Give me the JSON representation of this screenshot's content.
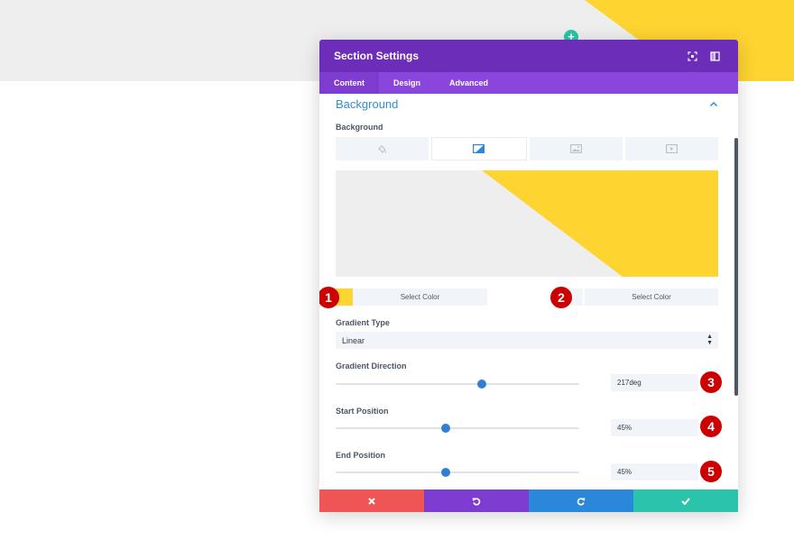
{
  "colors": {
    "canvas_gray": "#eeeeee",
    "accent_yellow": "#fed431",
    "add_teal": "#29c4a9",
    "header_purple": "#6c2eb9",
    "tabs_purple": "#8a45dc",
    "tab_active": "#7e3bd0",
    "link_blue": "#2f8fd0",
    "slider_blue": "#2f80d4",
    "badge_red": "#cc0000",
    "footer_cancel": "#ef5555",
    "footer_undo": "#7e3bd0",
    "footer_redo": "#2b87da",
    "footer_save": "#29c4a9"
  },
  "builder": {
    "add_section_icon": "plus-icon",
    "add_section_label": "+"
  },
  "modal": {
    "title": "Section Settings",
    "header_icons": [
      "fullscreen-icon",
      "split-view-icon"
    ],
    "tabs": [
      {
        "label": "Content",
        "active": true
      },
      {
        "label": "Design",
        "active": false
      },
      {
        "label": "Advanced",
        "active": false
      }
    ],
    "section": {
      "title": "Background",
      "toggle_icon": "chevron-up-icon",
      "background_label": "Background",
      "background_types": [
        {
          "icon": "color-fill-icon",
          "active": false
        },
        {
          "icon": "gradient-icon",
          "active": true
        },
        {
          "icon": "image-icon",
          "active": false
        },
        {
          "icon": "video-icon",
          "active": false
        }
      ],
      "gradient": {
        "color_1": "#fed431",
        "color_2": "",
        "select_color_1": "Select Color",
        "select_color_2": "Select Color",
        "type_label": "Gradient Type",
        "type_value": "Linear",
        "direction_label": "Gradient Direction",
        "direction_value": "217deg",
        "direction_fraction": 0.6,
        "start_label": "Start Position",
        "start_value": "45%",
        "start_fraction": 0.45,
        "end_label": "End Position",
        "end_value": "45%",
        "end_fraction": 0.45
      }
    },
    "footer": [
      {
        "action": "cancel",
        "icon": "close-icon"
      },
      {
        "action": "undo",
        "icon": "undo-icon"
      },
      {
        "action": "redo",
        "icon": "redo-icon"
      },
      {
        "action": "save",
        "icon": "check-icon"
      }
    ]
  },
  "annotations": [
    "1",
    "2",
    "3",
    "4",
    "5"
  ]
}
